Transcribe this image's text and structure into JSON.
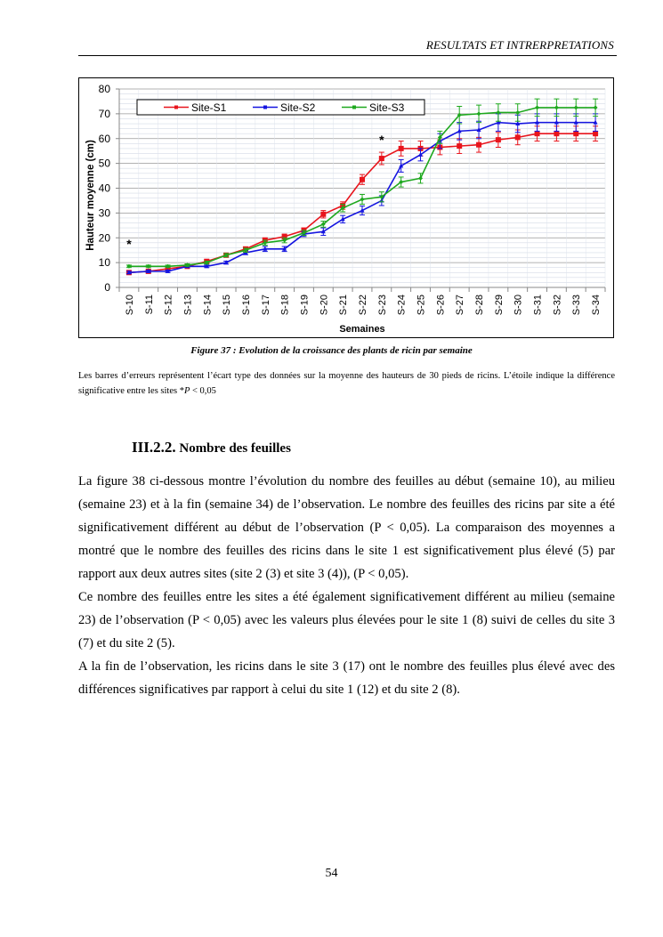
{
  "header": {
    "title": "RESULTATS ET INTRERPRETATIONS"
  },
  "figure": {
    "caption": "Figure 37 : Evolution de la croissance des plants de ricin par semaine",
    "note_part1": "Les barres d’erreurs représentent l’écart type des données sur la moyenne des hauteurs de 30 pieds de ricins. L’étoile indique la différence significative entre les sites *",
    "note_p": "P",
    "note_part2": " < 0,05"
  },
  "section": {
    "number": "III.2.2.",
    "title": " Nombre des feuilles"
  },
  "paragraphs": [
    "La figure 38 ci-dessous montre l’évolution du nombre des feuilles au début (semaine 10), au milieu (semaine 23) et à la fin (semaine 34) de l’observation. Le nombre des feuilles des ricins par site a été significativement différent au début de l’observation (P < 0,05). La comparaison des moyennes a montré que le nombre des feuilles des ricins dans le site 1 est significativement plus élevé (5) par rapport aux deux autres sites (site 2 (3) et site 3 (4)), (P < 0,05).",
    "Ce nombre des feuilles entre les sites a été également significativement différent au milieu (semaine 23)  de l’observation (P < 0,05) avec les valeurs plus élevées pour le site 1 (8) suivi de celles du site 3 (7) et du site 2 (5).",
    "A la fin de l’observation, les ricins dans le site 3 (17) ont le nombre des feuilles plus élevé avec des différences significatives par rapport à celui du site 1 (12) et du site 2 (8)."
  ],
  "page_number": "54",
  "chart_data": {
    "type": "line",
    "title": "",
    "xlabel": "Semaines",
    "ylabel": "Hauteur moyenne (cm)",
    "ylim": [
      0,
      80
    ],
    "yticks": [
      0,
      10,
      20,
      30,
      40,
      50,
      60,
      70,
      80
    ],
    "grid": true,
    "legend": "top",
    "categories": [
      "S-10",
      "S-11",
      "S-12",
      "S-13",
      "S-14",
      "S-15",
      "S-16",
      "S-17",
      "S-18",
      "S-19",
      "S-20",
      "S-21",
      "S-22",
      "S-23",
      "S-24",
      "S-25",
      "S-26",
      "S-27",
      "S-28",
      "S-29",
      "S-30",
      "S-31",
      "S-32",
      "S-33",
      "S-34"
    ],
    "series": [
      {
        "name": "Site-S1",
        "color": "#e8141c",
        "marker": "square",
        "values": [
          6,
          6.5,
          7.5,
          8.5,
          10.5,
          13,
          15.5,
          19,
          20.5,
          23,
          29.5,
          33,
          43.5,
          52,
          56,
          56,
          56.5,
          57,
          57.5,
          59.5,
          60.5,
          62,
          62,
          62,
          62
        ],
        "errors": [
          0.5,
          0.5,
          0.5,
          0.5,
          0.7,
          0.8,
          0.8,
          1,
          1,
          1,
          1.5,
          1.5,
          2,
          2.5,
          3,
          3,
          3,
          3,
          3,
          3,
          3,
          3,
          3,
          3,
          3
        ]
      },
      {
        "name": "Site-S2",
        "color": "#1414e0",
        "marker": "triangle",
        "values": [
          6,
          6.5,
          6.5,
          8.5,
          8.5,
          10,
          14,
          15.5,
          15.5,
          21.5,
          22.5,
          27.5,
          31,
          35,
          49,
          53.5,
          59,
          63,
          63.5,
          66.5,
          66,
          66.5,
          66.5,
          66.5,
          66.5
        ],
        "errors": [
          0.5,
          0.5,
          0.5,
          0.5,
          0.5,
          0.6,
          0.8,
          1,
          1,
          1,
          1.5,
          1.5,
          1.8,
          2,
          2.5,
          2.5,
          3,
          3.5,
          3.5,
          3.5,
          3.5,
          3.5,
          3.5,
          3.5,
          3.5
        ]
      },
      {
        "name": "Site-S3",
        "color": "#1ea81e",
        "marker": "diamond",
        "values": [
          8.5,
          8.5,
          8.5,
          9,
          10,
          13,
          15,
          18,
          19,
          22,
          25.5,
          32,
          35.5,
          36.5,
          42.5,
          44,
          60.5,
          69.5,
          70,
          70.5,
          70.5,
          72.5,
          72.5,
          72.5,
          72.5
        ],
        "errors": [
          0.5,
          0.5,
          0.5,
          0.5,
          0.6,
          0.7,
          0.8,
          1,
          1,
          1,
          1.2,
          1.5,
          2,
          2,
          2,
          2,
          2.5,
          3.5,
          3.5,
          3.5,
          3.5,
          3.5,
          3.5,
          3.5,
          3.5
        ]
      }
    ],
    "annotations": [
      {
        "text": "*",
        "x": "S-10",
        "y": 18
      },
      {
        "text": "*",
        "x": "S-23",
        "y": 60
      }
    ]
  }
}
